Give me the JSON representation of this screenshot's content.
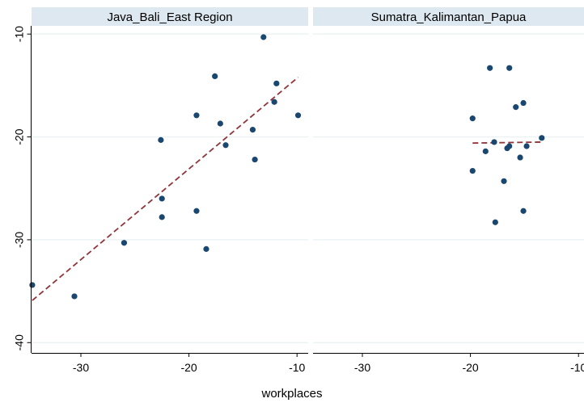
{
  "chart_data": {
    "type": "scatter",
    "xlabel": "workplaces",
    "ylabel": "",
    "xlim": [
      -35,
      -9.5
    ],
    "ylim": [
      -41,
      -9.2
    ],
    "xticks": [
      -30,
      -20,
      -10
    ],
    "yticks": [
      -10,
      -20,
      -30,
      -40
    ],
    "grid": "horizontal",
    "colors": {
      "points": "#1a476f",
      "fit_line": "#90353b",
      "panel_header": "#dde8f0",
      "gridline": "#eaf2f3",
      "axis": "#000000"
    },
    "panels": [
      {
        "title": "Java_Bali_East Region",
        "points": [
          {
            "x": -34.5,
            "y": -34.4
          },
          {
            "x": -30.6,
            "y": -35.5
          },
          {
            "x": -26.0,
            "y": -30.3
          },
          {
            "x": -22.6,
            "y": -20.3
          },
          {
            "x": -22.5,
            "y": -26.0
          },
          {
            "x": -22.5,
            "y": -27.8
          },
          {
            "x": -19.3,
            "y": -17.9
          },
          {
            "x": -19.3,
            "y": -27.2
          },
          {
            "x": -18.4,
            "y": -30.9
          },
          {
            "x": -17.6,
            "y": -14.1
          },
          {
            "x": -17.1,
            "y": -18.7
          },
          {
            "x": -16.6,
            "y": -20.8
          },
          {
            "x": -14.1,
            "y": -19.3
          },
          {
            "x": -13.9,
            "y": -22.2
          },
          {
            "x": -13.1,
            "y": -10.3
          },
          {
            "x": -12.1,
            "y": -16.6
          },
          {
            "x": -11.9,
            "y": -14.8
          },
          {
            "x": -9.9,
            "y": -17.9
          }
        ],
        "fit": {
          "x": [
            -34.5,
            -9.9
          ],
          "y": [
            -35.9,
            -14.2
          ]
        }
      },
      {
        "title": "Sumatra_Kalimantan_Papua",
        "points": [
          {
            "x": -19.8,
            "y": -18.2
          },
          {
            "x": -19.8,
            "y": -23.3
          },
          {
            "x": -18.6,
            "y": -21.4
          },
          {
            "x": -18.2,
            "y": -13.3
          },
          {
            "x": -17.8,
            "y": -20.5
          },
          {
            "x": -17.7,
            "y": -28.3
          },
          {
            "x": -16.9,
            "y": -24.3
          },
          {
            "x": -16.6,
            "y": -21.1
          },
          {
            "x": -16.4,
            "y": -13.3
          },
          {
            "x": -16.4,
            "y": -20.9
          },
          {
            "x": -15.8,
            "y": -17.1
          },
          {
            "x": -15.4,
            "y": -22.0
          },
          {
            "x": -15.1,
            "y": -16.7
          },
          {
            "x": -15.1,
            "y": -27.2
          },
          {
            "x": -14.8,
            "y": -20.9
          },
          {
            "x": -13.4,
            "y": -20.1
          }
        ],
        "fit": {
          "x": [
            -19.8,
            -13.4
          ],
          "y": [
            -20.6,
            -20.5
          ]
        }
      }
    ]
  }
}
